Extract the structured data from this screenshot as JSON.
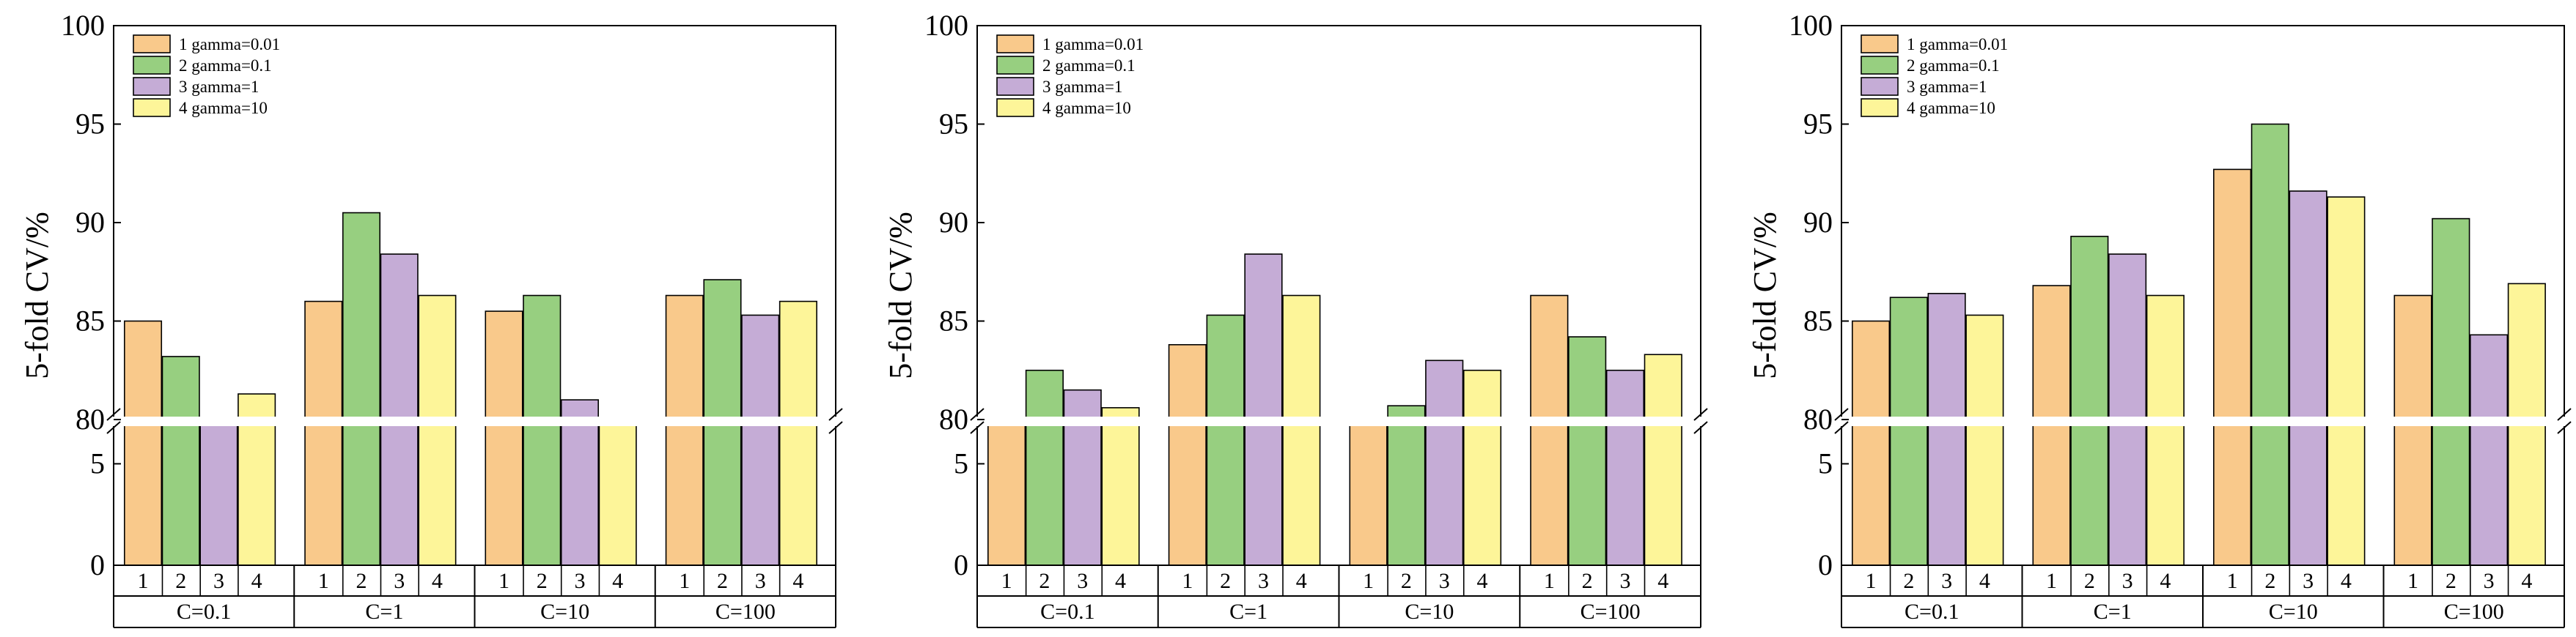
{
  "colors": {
    "1": "#F9C98B",
    "2": "#97CF80",
    "3": "#C5ACD6",
    "4": "#FDF599"
  },
  "chart_data": [
    {
      "type": "bar",
      "ylabel": "5-fold CV/%",
      "groups": [
        "C=0.1",
        "C=1",
        "C=10",
        "C=100"
      ],
      "categories": [
        "1",
        "2",
        "3",
        "4"
      ],
      "legend": [
        "1 gamma=0.01",
        "2 gamma=0.1",
        "3 gamma=1",
        "4 gamma=10"
      ],
      "legend_position": "top-left",
      "broken_axis": {
        "lower_ylim": [
          0,
          7
        ],
        "lower_ticks": [
          0,
          5
        ],
        "upper_ylim": [
          80,
          100
        ],
        "upper_ticks": [
          80,
          85,
          90,
          95,
          100
        ]
      },
      "values": [
        [
          85.0,
          83.2,
          80.0,
          81.3
        ],
        [
          86.0,
          90.5,
          88.4,
          86.3
        ],
        [
          85.5,
          86.3,
          81.0,
          80.0
        ],
        [
          86.3,
          87.1,
          85.3,
          86.0
        ]
      ]
    },
    {
      "type": "bar",
      "ylabel": "5-fold CV/%",
      "groups": [
        "C=0.1",
        "C=1",
        "C=10",
        "C=100"
      ],
      "categories": [
        "1",
        "2",
        "3",
        "4"
      ],
      "legend": [
        "1 gamma=0.01",
        "2 gamma=0.1",
        "3 gamma=1",
        "4 gamma=10"
      ],
      "legend_position": "top-left",
      "broken_axis": {
        "lower_ylim": [
          0,
          7
        ],
        "lower_ticks": [
          0,
          5
        ],
        "upper_ylim": [
          80,
          100
        ],
        "upper_ticks": [
          80,
          85,
          90,
          95,
          100
        ]
      },
      "values": [
        [
          80.0,
          82.5,
          81.5,
          80.6
        ],
        [
          83.8,
          85.3,
          88.4,
          86.3
        ],
        [
          80.0,
          80.7,
          83.0,
          82.5
        ],
        [
          86.3,
          84.2,
          82.5,
          83.3
        ]
      ]
    },
    {
      "type": "bar",
      "ylabel": "5-fold CV/%",
      "groups": [
        "C=0.1",
        "C=1",
        "C=10",
        "C=100"
      ],
      "categories": [
        "1",
        "2",
        "3",
        "4"
      ],
      "legend": [
        "1 gamma=0.01",
        "2 gamma=0.1",
        "3 gamma=1",
        "4 gamma=10"
      ],
      "legend_position": "top-left",
      "broken_axis": {
        "lower_ylim": [
          0,
          7
        ],
        "lower_ticks": [
          0,
          5
        ],
        "upper_ylim": [
          80,
          100
        ],
        "upper_ticks": [
          80,
          85,
          90,
          95,
          100
        ]
      },
      "values": [
        [
          85.0,
          86.2,
          86.4,
          85.3
        ],
        [
          86.8,
          89.3,
          88.4,
          86.3
        ],
        [
          92.7,
          95.0,
          91.6,
          91.3
        ],
        [
          86.3,
          90.2,
          84.3,
          86.9
        ]
      ]
    }
  ]
}
